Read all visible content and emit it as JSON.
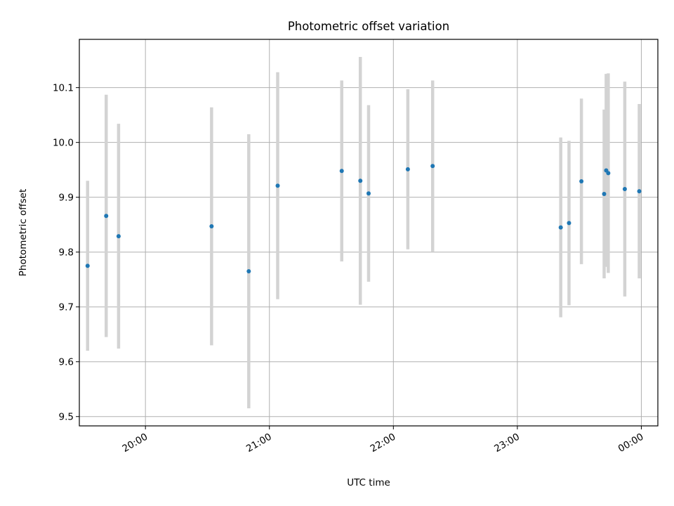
{
  "chart_data": {
    "type": "scatter",
    "title": "Photometric offset variation",
    "xlabel": "UTC time",
    "ylabel": "Photometric offset",
    "x_ticks": [
      "20:00",
      "21:00",
      "22:00",
      "23:00",
      "00:00"
    ],
    "y_ticks": [
      "9.5",
      "9.6",
      "9.7",
      "9.8",
      "9.9",
      "10.0",
      "10.1"
    ],
    "ylim": [
      9.483,
      10.188
    ],
    "grid": true,
    "colors": {
      "point": "#1f77b4",
      "error_bar": "#d3d3d3",
      "grid": "#b0b0b0"
    },
    "series": [
      {
        "points": [
          {
            "t": "19:32",
            "y": 9.775,
            "err": 0.155
          },
          {
            "t": "19:41",
            "y": 9.866,
            "err": 0.221
          },
          {
            "t": "19:47",
            "y": 9.829,
            "err": 0.205
          },
          {
            "t": "20:32",
            "y": 9.847,
            "err": 0.217
          },
          {
            "t": "20:50",
            "y": 9.765,
            "err": 0.25
          },
          {
            "t": "21:04",
            "y": 9.921,
            "err": 0.207
          },
          {
            "t": "21:35",
            "y": 9.948,
            "err": 0.165
          },
          {
            "t": "21:44",
            "y": 9.93,
            "err": 0.226
          },
          {
            "t": "21:48",
            "y": 9.907,
            "err": 0.161
          },
          {
            "t": "22:07",
            "y": 9.951,
            "err": 0.146
          },
          {
            "t": "22:19",
            "y": 9.957,
            "err": 0.156
          },
          {
            "t": "23:21",
            "y": 9.845,
            "err": 0.164
          },
          {
            "t": "23:25",
            "y": 9.853,
            "err": 0.15
          },
          {
            "t": "23:31",
            "y": 9.929,
            "err": 0.151
          },
          {
            "t": "23:42",
            "y": 9.906,
            "err": 0.154
          },
          {
            "t": "23:43",
            "y": 9.949,
            "err": 0.176
          },
          {
            "t": "23:44",
            "y": 9.944,
            "err": 0.182
          },
          {
            "t": "23:52",
            "y": 9.915,
            "err": 0.196
          },
          {
            "t": "23:59",
            "y": 9.911,
            "err": 0.159
          }
        ]
      }
    ]
  }
}
